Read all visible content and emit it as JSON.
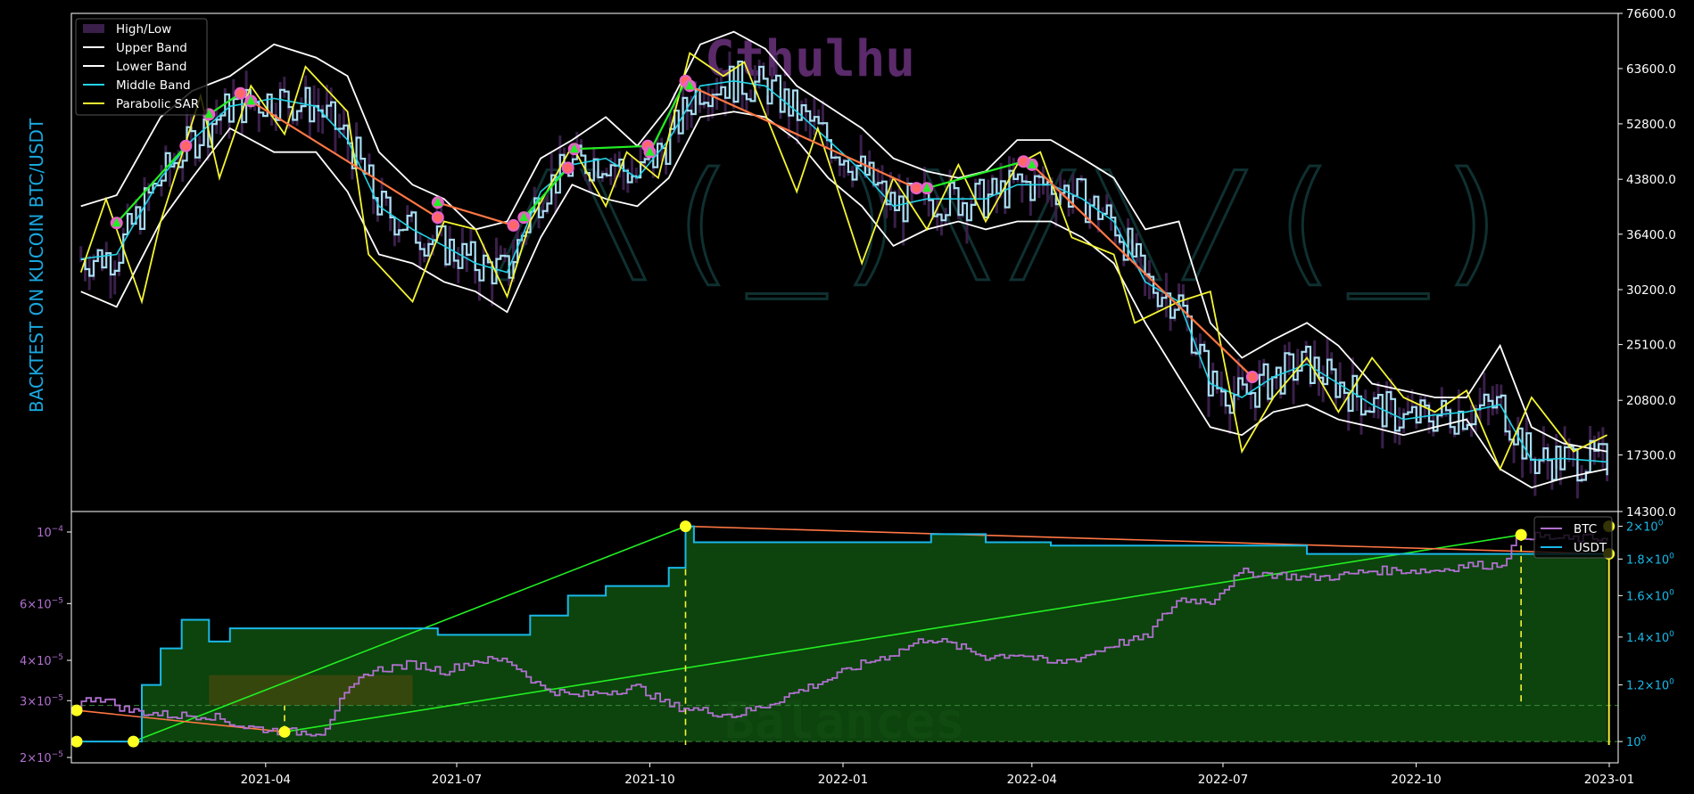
{
  "colors": {
    "background": "#000000",
    "axis": "#ffffff",
    "upper_band": "#ffffff",
    "lower_band": "#ffffff",
    "middle_band": "#22d3e6",
    "parabolic_sar": "#f5f532",
    "price": "#a8dcf0",
    "high_low": "#3a1f4a",
    "buy_marker": "#22ee22",
    "sell_marker": "#ff6666",
    "trade_line_win": "#22ee22",
    "trade_line_loss": "#ff7744",
    "btc_balance": "#b070d0",
    "usdt_balance": "#19b8e8",
    "fill_profit": "#0e4a0e",
    "fill_loss": "#5a4a10",
    "ylabel": "#19a8e0",
    "watermark_title": "#5a2a6a",
    "watermark_logo": "#0f3030",
    "watermark_balances": "#2a4a2a",
    "dashed": "#f5f532"
  },
  "chart_data": [
    {
      "type": "line",
      "ylabel": "BACKTEST ON KUCOIN  BTC/USDT",
      "watermark": "Cthulhu",
      "y_scale": "log",
      "ylim": [
        14300,
        76600
      ],
      "y_ticks": [
        "76600.0",
        "63600.0",
        "52800.0",
        "43800.0",
        "36400.0",
        "30200.0",
        "25100.0",
        "20800.0",
        "17300.0",
        "14300.0"
      ],
      "x_ticks": [
        "2021-04",
        "2021-07",
        "2021-10",
        "2022-01",
        "2022-04",
        "2022-07",
        "2022-10",
        "2023-01"
      ],
      "xlim": [
        "2021-01-01",
        "2023-01-01"
      ],
      "legend": {
        "position": "top-left",
        "entries": [
          "High/Low",
          "Upper Band",
          "Lower Band",
          "Middle Band",
          "Parabolic SAR"
        ]
      },
      "series": [
        {
          "name": "Middle Band",
          "x": [
            "2021-01-03",
            "2021-01-20",
            "2021-02-10",
            "2021-02-25",
            "2021-03-15",
            "2021-04-05",
            "2021-04-25",
            "2021-05-10",
            "2021-05-25",
            "2021-06-10",
            "2021-06-25",
            "2021-07-10",
            "2021-07-25",
            "2021-08-10",
            "2021-08-25",
            "2021-09-10",
            "2021-09-25",
            "2021-10-10",
            "2021-10-25",
            "2021-11-10",
            "2021-11-25",
            "2021-12-10",
            "2021-12-25",
            "2022-01-10",
            "2022-01-25",
            "2022-02-10",
            "2022-02-25",
            "2022-03-10",
            "2022-03-25",
            "2022-04-10",
            "2022-04-25",
            "2022-05-10",
            "2022-05-25",
            "2022-06-10",
            "2022-06-25",
            "2022-07-10",
            "2022-07-25",
            "2022-08-10",
            "2022-08-25",
            "2022-09-10",
            "2022-09-25",
            "2022-10-10",
            "2022-10-25",
            "2022-11-10",
            "2022-11-25",
            "2022-12-10",
            "2022-12-31"
          ],
          "y": [
            33500,
            34000,
            44000,
            50000,
            56000,
            57500,
            56000,
            50000,
            40000,
            37000,
            35000,
            33000,
            32000,
            42000,
            46000,
            47000,
            44000,
            50000,
            60000,
            61000,
            60000,
            55000,
            50000,
            45000,
            40000,
            41000,
            41000,
            41000,
            43000,
            43000,
            41000,
            38000,
            31000,
            29000,
            22000,
            21000,
            22500,
            23500,
            22000,
            20500,
            19500,
            19800,
            20000,
            20500,
            17000,
            17100,
            16900
          ]
        },
        {
          "name": "Upper Band",
          "x": [
            "2021-01-03",
            "2021-01-20",
            "2021-02-10",
            "2021-02-25",
            "2021-03-15",
            "2021-04-05",
            "2021-04-25",
            "2021-05-10",
            "2021-05-25",
            "2021-06-10",
            "2021-06-25",
            "2021-07-10",
            "2021-07-25",
            "2021-08-10",
            "2021-08-25",
            "2021-09-10",
            "2021-09-25",
            "2021-10-10",
            "2021-10-25",
            "2021-11-10",
            "2021-11-25",
            "2021-12-10",
            "2021-12-25",
            "2022-01-10",
            "2022-01-25",
            "2022-02-10",
            "2022-02-25",
            "2022-03-10",
            "2022-03-25",
            "2022-04-10",
            "2022-04-25",
            "2022-05-10",
            "2022-05-25",
            "2022-06-10",
            "2022-06-25",
            "2022-07-10",
            "2022-07-25",
            "2022-08-10",
            "2022-08-25",
            "2022-09-10",
            "2022-09-25",
            "2022-10-10",
            "2022-10-25",
            "2022-11-10",
            "2022-11-25",
            "2022-12-10",
            "2022-12-31"
          ],
          "y": [
            40000,
            41500,
            54000,
            59000,
            62000,
            69000,
            66000,
            62000,
            48000,
            43000,
            41000,
            37000,
            38000,
            47000,
            50000,
            54000,
            49000,
            56000,
            69000,
            72000,
            68000,
            60000,
            56000,
            52000,
            47000,
            45000,
            44000,
            45000,
            50000,
            50000,
            47000,
            44000,
            37000,
            38000,
            27000,
            24000,
            25500,
            27000,
            25000,
            22000,
            21500,
            21000,
            21000,
            25000,
            19000,
            18000,
            17500
          ]
        },
        {
          "name": "Lower Band",
          "x": [
            "2021-01-03",
            "2021-01-20",
            "2021-02-10",
            "2021-02-25",
            "2021-03-15",
            "2021-04-05",
            "2021-04-25",
            "2021-05-10",
            "2021-05-25",
            "2021-06-10",
            "2021-06-25",
            "2021-07-10",
            "2021-07-25",
            "2021-08-10",
            "2021-08-25",
            "2021-09-10",
            "2021-09-25",
            "2021-10-10",
            "2021-10-25",
            "2021-11-10",
            "2021-11-25",
            "2021-12-10",
            "2021-12-25",
            "2022-01-10",
            "2022-01-25",
            "2022-02-10",
            "2022-02-25",
            "2022-03-10",
            "2022-03-25",
            "2022-04-10",
            "2022-04-25",
            "2022-05-10",
            "2022-05-25",
            "2022-06-10",
            "2022-06-25",
            "2022-07-10",
            "2022-07-25",
            "2022-08-10",
            "2022-08-25",
            "2022-09-10",
            "2022-09-25",
            "2022-10-10",
            "2022-10-25",
            "2022-11-10",
            "2022-11-25",
            "2022-12-10",
            "2022-12-31"
          ],
          "y": [
            30000,
            28500,
            38000,
            44000,
            52000,
            48000,
            48000,
            42000,
            34000,
            33000,
            31000,
            30000,
            28000,
            36000,
            43000,
            41000,
            40000,
            44000,
            54000,
            55000,
            54000,
            50000,
            44000,
            40000,
            35000,
            37000,
            38000,
            37000,
            38000,
            38000,
            36000,
            33000,
            27000,
            22500,
            19000,
            18500,
            20000,
            20500,
            19500,
            19000,
            18500,
            19000,
            19500,
            16500,
            15500,
            16000,
            16500
          ]
        },
        {
          "name": "Parabolic SAR",
          "x": [
            "2021-01-03",
            "2021-01-15",
            "2021-02-01",
            "2021-02-10",
            "2021-03-01",
            "2021-03-10",
            "2021-03-25",
            "2021-04-10",
            "2021-04-20",
            "2021-05-10",
            "2021-05-20",
            "2021-06-10",
            "2021-06-25",
            "2021-07-10",
            "2021-07-25",
            "2021-08-05",
            "2021-08-25",
            "2021-09-10",
            "2021-09-20",
            "2021-10-05",
            "2021-10-20",
            "2021-11-05",
            "2021-11-15",
            "2021-12-10",
            "2021-12-20",
            "2022-01-10",
            "2022-01-25",
            "2022-02-10",
            "2022-02-25",
            "2022-03-10",
            "2022-03-25",
            "2022-04-05",
            "2022-04-20",
            "2022-05-10",
            "2022-05-20",
            "2022-06-10",
            "2022-06-25",
            "2022-07-10",
            "2022-07-25",
            "2022-08-10",
            "2022-08-25",
            "2022-09-10",
            "2022-09-25",
            "2022-10-10",
            "2022-10-25",
            "2022-11-10",
            "2022-11-25",
            "2022-12-15",
            "2022-12-31"
          ],
          "y": [
            32000,
            41000,
            29000,
            38000,
            58000,
            44000,
            60000,
            51000,
            64000,
            55000,
            34000,
            29000,
            38000,
            37000,
            29500,
            38000,
            49000,
            40000,
            48000,
            44000,
            67000,
            62000,
            65000,
            42000,
            52000,
            33000,
            44000,
            37000,
            46000,
            38000,
            46000,
            48000,
            36000,
            34000,
            27000,
            29000,
            30000,
            17500,
            21000,
            24000,
            20000,
            24000,
            21000,
            20000,
            21500,
            16500,
            21000,
            17500,
            18500
          ]
        }
      ],
      "trades": [
        {
          "entry_date": "2021-01-20",
          "entry_price": 37800,
          "exit_date": "2021-02-22",
          "exit_price": 49000
        },
        {
          "entry_date": "2021-03-05",
          "entry_price": 54500,
          "exit_date": "2021-03-20",
          "exit_price": 58500
        },
        {
          "entry_date": "2021-03-25",
          "entry_price": 57000,
          "exit_date": "2021-06-22",
          "exit_price": 38500
        },
        {
          "entry_date": "2021-06-22",
          "entry_price": 40500,
          "exit_date": "2021-07-28",
          "exit_price": 37500
        },
        {
          "entry_date": "2021-08-02",
          "entry_price": 38500,
          "exit_date": "2021-08-23",
          "exit_price": 45500
        },
        {
          "entry_date": "2021-08-26",
          "entry_price": 48500,
          "exit_date": "2021-09-30",
          "exit_price": 49000
        },
        {
          "entry_date": "2021-10-01",
          "entry_price": 48000,
          "exit_date": "2021-10-18",
          "exit_price": 61000
        },
        {
          "entry_date": "2021-10-20",
          "entry_price": 60000,
          "exit_date": "2022-02-05",
          "exit_price": 42500
        },
        {
          "entry_date": "2022-02-10",
          "entry_price": 42500,
          "exit_date": "2022-03-28",
          "exit_price": 46500
        },
        {
          "entry_date": "2022-04-01",
          "entry_price": 46000,
          "exit_date": "2022-07-15",
          "exit_price": 22500
        }
      ]
    },
    {
      "type": "line",
      "watermark": "Balances",
      "y_scale": "log",
      "left_axis": {
        "series": "BTC",
        "ylim": [
          2e-05,
          0.00011
        ],
        "ticks": [
          {
            "value": 0.0001,
            "base": "10",
            "exp": "−4"
          },
          {
            "value": 6e-05,
            "base": "6×10",
            "exp": "−5"
          },
          {
            "value": 4e-05,
            "base": "4×10",
            "exp": "−5"
          },
          {
            "value": 3e-05,
            "base": "3×10",
            "exp": "−5"
          },
          {
            "value": 2e-05,
            "base": "2×10",
            "exp": "−5"
          }
        ]
      },
      "right_axis": {
        "series": "USDT",
        "ylim": [
          0.95,
          2.05
        ],
        "ticks": [
          {
            "value": 2.0,
            "base": "2×10",
            "exp": "0"
          },
          {
            "value": 1.8,
            "base": "1.8×10",
            "exp": "0"
          },
          {
            "value": 1.6,
            "base": "1.6×10",
            "exp": "0"
          },
          {
            "value": 1.4,
            "base": "1.4×10",
            "exp": "0"
          },
          {
            "value": 1.2,
            "base": "1.2×10",
            "exp": "0"
          },
          {
            "value": 1.0,
            "base": "10",
            "exp": "0"
          }
        ]
      },
      "legend": {
        "position": "top-right",
        "entries": [
          "BTC",
          "USDT"
        ]
      },
      "series": [
        {
          "name": "BTC",
          "x": [
            "2021-01-01",
            "2021-01-10",
            "2021-01-25",
            "2021-02-15",
            "2021-03-05",
            "2021-03-20",
            "2021-04-10",
            "2021-04-28",
            "2021-05-05",
            "2021-05-20",
            "2021-06-10",
            "2021-06-25",
            "2021-07-10",
            "2021-07-25",
            "2021-08-10",
            "2021-08-25",
            "2021-09-10",
            "2021-09-25",
            "2021-10-10",
            "2021-10-25",
            "2021-11-10",
            "2021-11-25",
            "2021-12-10",
            "2021-12-25",
            "2022-01-10",
            "2022-01-25",
            "2022-02-10",
            "2022-02-25",
            "2022-03-10",
            "2022-03-25",
            "2022-04-10",
            "2022-04-25",
            "2022-05-10",
            "2022-05-25",
            "2022-06-10",
            "2022-06-25",
            "2022-07-10",
            "2022-07-25",
            "2022-08-10",
            "2022-08-25",
            "2022-09-10",
            "2022-09-25",
            "2022-10-10",
            "2022-10-25",
            "2022-11-10",
            "2022-11-20",
            "2022-12-10",
            "2022-12-31"
          ],
          "y": [
            2.9e-05,
            3.1e-05,
            2.8e-05,
            2.7e-05,
            2.7e-05,
            2.5e-05,
            2.4e-05,
            2.4e-05,
            2.9e-05,
            3.7e-05,
            3.9e-05,
            3.7e-05,
            4e-05,
            4e-05,
            3.3e-05,
            3.1e-05,
            3.2e-05,
            3.3e-05,
            2.9e-05,
            2.8e-05,
            2.7e-05,
            2.9e-05,
            3.2e-05,
            3.5e-05,
            3.9e-05,
            4.2e-05,
            4.7e-05,
            4.4e-05,
            4.1e-05,
            4.2e-05,
            3.9e-05,
            4.1e-05,
            4.5e-05,
            4.7e-05,
            6.2e-05,
            6.1e-05,
            7.5e-05,
            7.4e-05,
            7.2e-05,
            7.3e-05,
            7.6e-05,
            7.6e-05,
            7.6e-05,
            7.9e-05,
            7.9e-05,
            9.8e-05,
            9.5e-05,
            9.6e-05
          ]
        },
        {
          "name": "USDT",
          "x": [
            "2021-01-01",
            "2021-01-28",
            "2021-02-01",
            "2021-02-10",
            "2021-02-20",
            "2021-03-05",
            "2021-03-15",
            "2021-04-10",
            "2021-05-10",
            "2021-06-10",
            "2021-06-22",
            "2021-07-28",
            "2021-08-05",
            "2021-08-23",
            "2021-09-10",
            "2021-09-30",
            "2021-10-10",
            "2021-10-18",
            "2021-10-22",
            "2021-11-10",
            "2021-12-10",
            "2022-01-10",
            "2022-02-05",
            "2022-02-12",
            "2022-03-10",
            "2022-03-28",
            "2022-04-10",
            "2022-05-10",
            "2022-06-10",
            "2022-07-15",
            "2022-08-10",
            "2022-09-10",
            "2022-10-10",
            "2022-11-10",
            "2022-12-10",
            "2022-12-31"
          ],
          "y": [
            1.0,
            1.0,
            1.2,
            1.35,
            1.48,
            1.38,
            1.44,
            1.44,
            1.44,
            1.44,
            1.41,
            1.41,
            1.5,
            1.6,
            1.65,
            1.65,
            1.75,
            2.0,
            1.9,
            1.9,
            1.9,
            1.9,
            1.9,
            1.95,
            1.9,
            1.9,
            1.88,
            1.88,
            1.88,
            1.88,
            1.83,
            1.83,
            1.83,
            1.83,
            1.83,
            1.83
          ]
        }
      ]
    }
  ]
}
